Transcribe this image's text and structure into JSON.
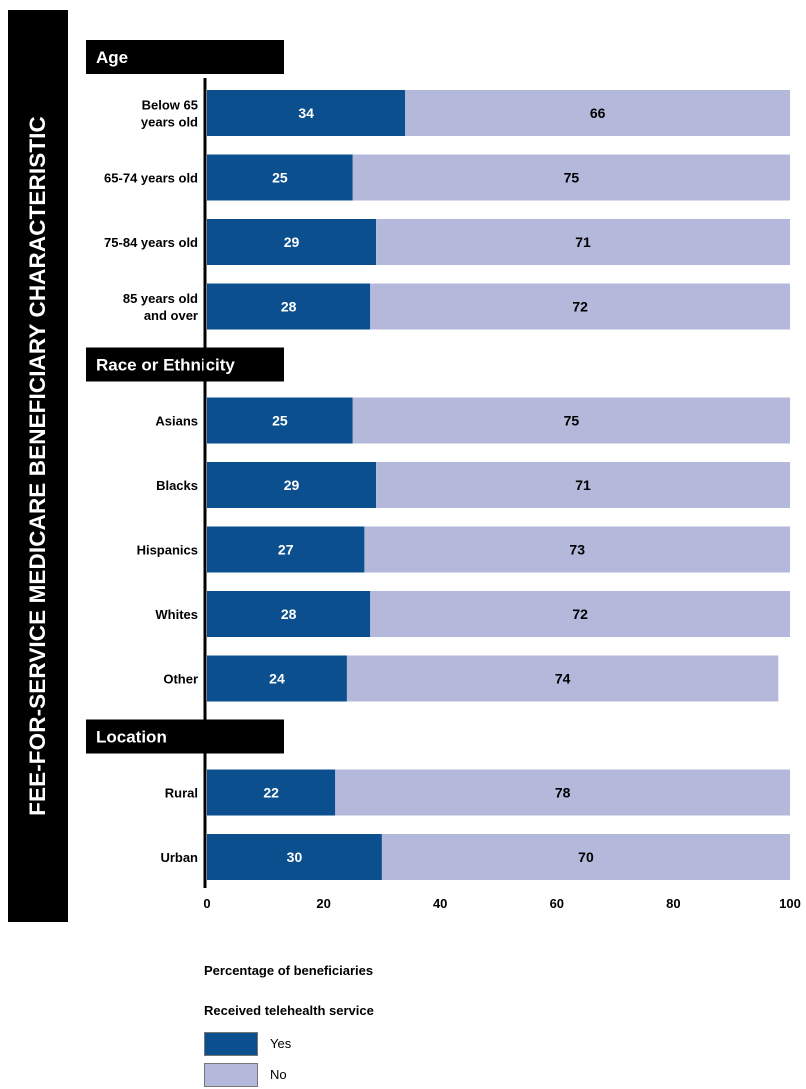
{
  "side_title": "FEE-FOR-SERVICE MEDICARE BENEFICIARY CHARACTERISTIC",
  "colors": {
    "yes": "#0b4f8f",
    "no": "#b4b9dc",
    "group_header": "#000000"
  },
  "chart_data": {
    "type": "bar",
    "orientation": "horizontal",
    "stacked": true,
    "xlabel": "Percentage of beneficiaries",
    "xlim": [
      0,
      100
    ],
    "x_ticks": [
      0,
      20,
      40,
      60,
      80,
      100
    ],
    "grid": false,
    "groups": [
      {
        "label": "Age",
        "categories": [
          {
            "label": [
              "Below 65",
              "years old"
            ],
            "yes": 34,
            "no": 66
          },
          {
            "label": [
              "65-74 years old"
            ],
            "yes": 25,
            "no": 75
          },
          {
            "label": [
              "75-84 years old"
            ],
            "yes": 29,
            "no": 71
          },
          {
            "label": [
              "85 years old",
              "and over"
            ],
            "yes": 28,
            "no": 72
          }
        ]
      },
      {
        "label": "Race or Ethnicity",
        "categories": [
          {
            "label": [
              "Asians"
            ],
            "yes": 25,
            "no": 75
          },
          {
            "label": [
              "Blacks"
            ],
            "yes": 29,
            "no": 71
          },
          {
            "label": [
              "Hispanics"
            ],
            "yes": 27,
            "no": 73
          },
          {
            "label": [
              "Whites"
            ],
            "yes": 28,
            "no": 72
          },
          {
            "label": [
              "Other"
            ],
            "yes": 24,
            "no": 74
          }
        ]
      },
      {
        "label": "Location",
        "categories": [
          {
            "label": [
              "Rural"
            ],
            "yes": 22,
            "no": 78
          },
          {
            "label": [
              "Urban"
            ],
            "yes": 30,
            "no": 70
          }
        ]
      }
    ],
    "legend": {
      "title": "Received telehealth service",
      "placement": "bottom-left",
      "entries": [
        {
          "key": "yes",
          "label": "Yes"
        },
        {
          "key": "no",
          "label": "No"
        }
      ]
    }
  }
}
